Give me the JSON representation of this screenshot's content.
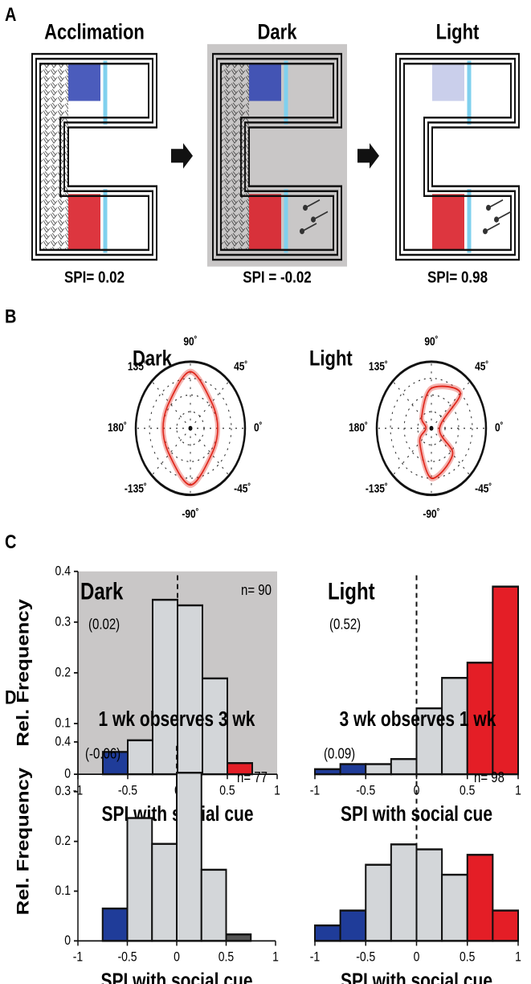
{
  "panel_a": {
    "label": "A",
    "arenas": [
      {
        "title": "Acclimation",
        "spi": "SPI= 0.02"
      },
      {
        "title": "Dark",
        "spi": "SPI = -0.02"
      },
      {
        "title": "Light",
        "spi": "SPI= 0.98"
      }
    ]
  },
  "panel_b": {
    "label": "B"
  },
  "panel_c": {
    "label": "C"
  },
  "panel_d": {
    "label": "D"
  },
  "chart_data": [
    {
      "type": "polar",
      "title": "Dark",
      "theta": [
        0,
        45,
        90,
        135,
        180,
        -135,
        -90,
        -45
      ],
      "r": [
        0.5,
        0.55,
        0.85,
        0.55,
        0.5,
        0.55,
        0.85,
        0.55
      ],
      "rlim": [
        0,
        1
      ],
      "color": "#e0261b",
      "thetaticks": [
        {
          "value": 90,
          "label": "90˚"
        },
        {
          "value": 45,
          "label": "45˚"
        },
        {
          "value": 0,
          "label": "0˚"
        },
        {
          "value": -45,
          "label": "-45˚"
        },
        {
          "value": -90,
          "label": "-90˚"
        },
        {
          "value": -135,
          "label": "-135˚"
        },
        {
          "value": 180,
          "label": "180˚"
        },
        {
          "value": 135,
          "label": "135˚"
        }
      ]
    },
    {
      "type": "polar",
      "title": "Light",
      "theta": [
        0,
        45,
        90,
        135,
        180,
        -135,
        -90,
        -45
      ],
      "r": [
        0.15,
        0.75,
        0.6,
        0.25,
        0.1,
        0.3,
        0.75,
        0.55
      ],
      "rlim": [
        0,
        1
      ],
      "color": "#e0261b",
      "thetaticks": [
        {
          "value": 90,
          "label": "90˚"
        },
        {
          "value": 45,
          "label": "45˚"
        },
        {
          "value": 0,
          "label": "0˚"
        },
        {
          "value": -45,
          "label": "-45˚"
        },
        {
          "value": -90,
          "label": "-90˚"
        },
        {
          "value": -135,
          "label": "-135˚"
        },
        {
          "value": 180,
          "label": "180˚"
        },
        {
          "value": 135,
          "label": "135˚"
        }
      ]
    },
    {
      "type": "histogram",
      "title": "Dark",
      "bins": [
        -1,
        -0.75,
        -0.5,
        -0.25,
        0,
        0.25,
        0.5,
        0.75,
        1
      ],
      "values": [
        0,
        0.044,
        0.067,
        0.344,
        0.333,
        0.189,
        0.022,
        0
      ],
      "colors": [
        "#d3d6d9",
        "#1f3c99",
        "#d3d6d9",
        "#d3d6d9",
        "#d3d6d9",
        "#d3d6d9",
        "#e41e26",
        "#d3d6d9"
      ],
      "xlim": [
        -1,
        1
      ],
      "ylim": [
        0,
        0.4
      ],
      "xticks": [
        -1,
        -0.5,
        0,
        0.5,
        1
      ],
      "yticks": [
        0,
        0.1,
        0.2,
        0.3,
        0.4
      ],
      "xlabel": "SPI with social cue",
      "ylabel": "Rel. Frequency",
      "annotations": [
        "(0.02)",
        "n= 90"
      ],
      "background": "#c9c7c7",
      "refline": 0
    },
    {
      "type": "histogram",
      "title": "Light",
      "bins": [
        -1,
        -0.75,
        -0.5,
        -0.25,
        0,
        0.25,
        0.5,
        0.75,
        1
      ],
      "values": [
        0.01,
        0.02,
        0.02,
        0.03,
        0.13,
        0.19,
        0.22,
        0.37
      ],
      "colors": [
        "#1f3c99",
        "#1f3c99",
        "#d3d6d9",
        "#d3d6d9",
        "#d3d6d9",
        "#d3d6d9",
        "#e41e26",
        "#e41e26"
      ],
      "xlim": [
        -1,
        1
      ],
      "ylim": [
        0,
        0.4
      ],
      "xticks": [
        -1,
        -0.5,
        0,
        0.5,
        1
      ],
      "xlabel": "SPI with social cue",
      "annotations": [
        "(0.52)"
      ],
      "refline": 0
    },
    {
      "type": "histogram",
      "title": "1 wk observes 3 wk",
      "bins": [
        -1,
        -0.75,
        -0.5,
        -0.25,
        0,
        0.25,
        0.5,
        0.75,
        1
      ],
      "values": [
        0,
        0.065,
        0.247,
        0.195,
        0.338,
        0.143,
        0.013,
        0
      ],
      "colors": [
        "#d3d6d9",
        "#1f3c99",
        "#d3d6d9",
        "#d3d6d9",
        "#d3d6d9",
        "#d3d6d9",
        "#555555",
        "#d3d6d9"
      ],
      "xlim": [
        -1,
        1
      ],
      "ylim": [
        0,
        0.4
      ],
      "xticks": [
        -1,
        -0.5,
        0,
        0.5,
        1
      ],
      "yticks": [
        0,
        0.1,
        0.2,
        0.3,
        0.4
      ],
      "xlabel": "SPI with social cue",
      "ylabel": "Rel. Frequency",
      "annotations": [
        "(-0.06)",
        "n= 77"
      ],
      "refline": 0
    },
    {
      "type": "histogram",
      "title": "3 wk observes 1 wk",
      "bins": [
        -1,
        -0.75,
        -0.5,
        -0.25,
        0,
        0.25,
        0.5,
        0.75,
        1
      ],
      "values": [
        0.031,
        0.061,
        0.153,
        0.194,
        0.184,
        0.133,
        0.173,
        0.061
      ],
      "colors": [
        "#1f3c99",
        "#1f3c99",
        "#d3d6d9",
        "#d3d6d9",
        "#d3d6d9",
        "#d3d6d9",
        "#e41e26",
        "#e41e26"
      ],
      "xlim": [
        -1,
        1
      ],
      "ylim": [
        0,
        0.4
      ],
      "xticks": [
        -1,
        -0.5,
        0,
        0.5,
        1
      ],
      "xlabel": "SPI with social cue",
      "annotations": [
        "(0.09)",
        "n= 98"
      ],
      "refline": 0
    }
  ]
}
